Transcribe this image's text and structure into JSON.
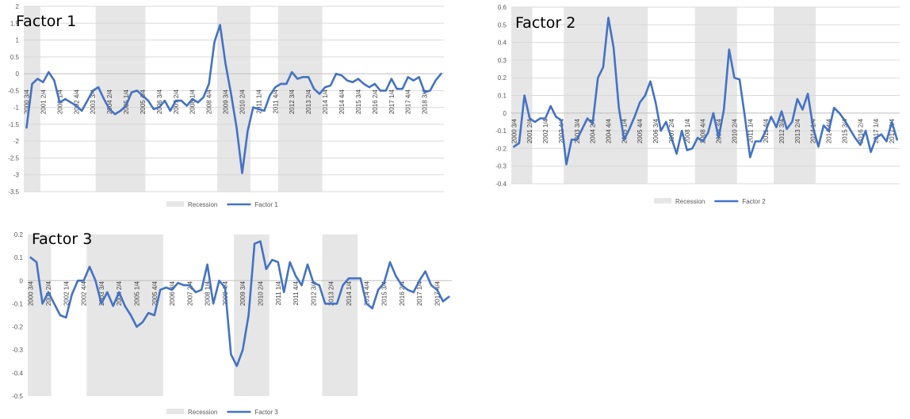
{
  "chart_data": [
    {
      "type": "line",
      "title": "Factor 1",
      "xlabel": "",
      "ylabel": "",
      "ylim": [
        -3.5,
        2
      ],
      "yticks": [
        "2",
        "1.5",
        "1",
        "0.5",
        "0",
        "-0.5",
        "-1",
        "-1.5",
        "-2",
        "-2.5",
        "-3",
        "-3.5"
      ],
      "x_labels": [
        "2000 3/4",
        "2001 2/4",
        "2002 1/4",
        "2002 4/4",
        "2003 3/4",
        "2004 2/4",
        "2005 1/4",
        "2005 4/4",
        "2006 3/4",
        "2007 2/4",
        "2008 1/4",
        "2008 4/4",
        "2009 3/4",
        "2010 2/4",
        "2011 1/4",
        "2011 4/4",
        "2012 3/4",
        "2013 2/4",
        "2014 1/4",
        "2014 4/4",
        "2015 3/4",
        "2016 2/4",
        "2017 1/4",
        "2017 4/4",
        "2018 3/4"
      ],
      "grid": true,
      "recession_periods": [
        [
          0,
          2
        ],
        [
          13,
          21
        ],
        [
          35,
          40
        ],
        [
          46,
          53
        ]
      ],
      "series": [
        {
          "name": "Factor 1",
          "values": [
            -1.6,
            -0.3,
            -0.15,
            -0.25,
            0.05,
            -0.2,
            -0.85,
            -0.75,
            -0.85,
            -0.95,
            -1.1,
            -0.8,
            -0.5,
            -0.4,
            -0.75,
            -1.05,
            -1.2,
            -1.1,
            -0.95,
            -0.55,
            -0.5,
            -0.65,
            -0.8,
            -1.05,
            -1.0,
            -0.8,
            -1.1,
            -0.8,
            -0.8,
            -0.95,
            -0.75,
            -0.85,
            -0.7,
            -0.3,
            0.95,
            1.45,
            0.3,
            -0.6,
            -1.6,
            -2.95,
            -1.7,
            -1.0,
            -1.05,
            -1.1,
            -0.65,
            -0.4,
            -0.3,
            -0.3,
            0.05,
            -0.15,
            -0.1,
            -0.1,
            -0.45,
            -0.6,
            -0.4,
            -0.35,
            0.0,
            -0.05,
            -0.2,
            -0.25,
            -0.15,
            -0.3,
            -0.4,
            -0.3,
            -0.5,
            -0.5,
            -0.15,
            -0.45,
            -0.45,
            -0.1,
            -0.2,
            -0.1,
            -0.55,
            -0.5,
            -0.2,
            0.0
          ]
        }
      ],
      "legend": [
        "Recession",
        "Factor 1"
      ],
      "legend_placement": "bottom"
    },
    {
      "type": "line",
      "title": "Factor 2",
      "xlabel": "",
      "ylabel": "",
      "ylim": [
        -0.4,
        0.6
      ],
      "yticks": [
        "0.6",
        "0.5",
        "0.4",
        "0.3",
        "0.2",
        "0.1",
        "0",
        "-0.1",
        "-0.2",
        "-0.3",
        "-0.4"
      ],
      "x_labels": [
        "2000 3/4",
        "2001 2/4",
        "2002 1/4",
        "2002 4/4",
        "2003 3/4",
        "2004 2/4",
        "2004 4/4",
        "2005 1/4",
        "2005 4/4",
        "2006 3/4",
        "2007 2/4",
        "2008 1/4",
        "2008 4/4",
        "2009 3/4",
        "2010 2/4",
        "2011 1/4",
        "2011 4/4",
        "2012 3/4",
        "2013 2/4",
        "2014 1/4",
        "2014 4/4",
        "2015 3/4",
        "2016 2/4",
        "2017 1/4",
        "2017 4/4",
        "2018 3/4"
      ],
      "grid": true,
      "recession_periods": [
        [
          0,
          3
        ],
        [
          10,
          25
        ],
        [
          35,
          42
        ],
        [
          50,
          57
        ]
      ],
      "series": [
        {
          "name": "Factor 2",
          "values": [
            -0.19,
            -0.17,
            0.1,
            -0.03,
            -0.05,
            -0.03,
            -0.03,
            0.04,
            -0.02,
            -0.04,
            -0.29,
            -0.15,
            -0.15,
            -0.09,
            -0.03,
            -0.06,
            0.2,
            0.26,
            0.54,
            0.37,
            0.03,
            -0.15,
            -0.09,
            -0.02,
            0.06,
            0.1,
            0.18,
            0.06,
            -0.1,
            -0.05,
            -0.14,
            -0.23,
            -0.1,
            -0.21,
            -0.2,
            -0.14,
            -0.16,
            -0.11,
            0.0,
            -0.14,
            0.02,
            0.36,
            0.2,
            0.19,
            -0.02,
            -0.25,
            -0.16,
            -0.16,
            -0.1,
            -0.02,
            -0.08,
            0.01,
            -0.09,
            -0.05,
            0.08,
            0.02,
            0.11,
            -0.08,
            -0.19,
            -0.07,
            -0.1,
            0.03,
            0.0,
            -0.04,
            -0.09,
            -0.14,
            -0.18,
            -0.1,
            -0.22,
            -0.14,
            -0.12,
            -0.16,
            -0.05,
            -0.15
          ]
        }
      ],
      "legend": [
        "Recession",
        "Factor 2"
      ],
      "legend_placement": "bottom"
    },
    {
      "type": "line",
      "title": "Factor 3",
      "xlabel": "",
      "ylabel": "",
      "ylim": [
        -0.5,
        0.2
      ],
      "yticks": [
        "0.2",
        "0.1",
        "0",
        "-0.1",
        "-0.2",
        "-0.3",
        "-0.4",
        "-0.5"
      ],
      "x_labels": [
        "2000 3/4",
        "2001 2/4",
        "2002 1/4",
        "2002 4/4",
        "2003 3/4",
        "2004 2/4",
        "2005 1/4",
        "2005 4/4",
        "2006 3/4",
        "2007 2/4",
        "2008 1/4",
        "2008 4/4",
        "2009 3/4",
        "2010 2/4",
        "2011 1/4",
        "2011 4/4",
        "2012 3/4",
        "2013 2/4",
        "2014 1/4",
        "2014 4/4",
        "2015 3/4",
        "2016 2/4",
        "2017 1/4",
        "2017 4/4",
        "2018 3/4"
      ],
      "grid": false,
      "recession_periods": [
        [
          0,
          3
        ],
        [
          10,
          22
        ],
        [
          35,
          40
        ],
        [
          50,
          55
        ]
      ],
      "series": [
        {
          "name": "Factor 3",
          "values": [
            0.1,
            0.08,
            -0.1,
            -0.05,
            -0.1,
            -0.15,
            -0.16,
            -0.06,
            0.0,
            0.0,
            0.06,
            0.0,
            -0.1,
            -0.05,
            -0.11,
            -0.05,
            -0.11,
            -0.15,
            -0.2,
            -0.18,
            -0.14,
            -0.15,
            -0.04,
            -0.03,
            -0.04,
            -0.01,
            -0.02,
            -0.02,
            -0.05,
            -0.04,
            0.07,
            -0.1,
            0.0,
            -0.03,
            -0.32,
            -0.37,
            -0.3,
            -0.15,
            0.16,
            0.17,
            0.05,
            0.09,
            0.08,
            -0.05,
            0.08,
            0.02,
            -0.02,
            0.07,
            -0.01,
            -0.02,
            -0.1,
            -0.1,
            -0.1,
            -0.02,
            0.01,
            0.01,
            0.01,
            -0.1,
            -0.12,
            -0.04,
            -0.01,
            0.08,
            0.02,
            -0.02,
            -0.04,
            -0.05,
            0.0,
            0.04,
            -0.02,
            -0.04,
            -0.09,
            -0.07
          ]
        }
      ],
      "legend": [
        "Recession",
        "Factor 3"
      ],
      "legend_placement": "bottom"
    }
  ]
}
